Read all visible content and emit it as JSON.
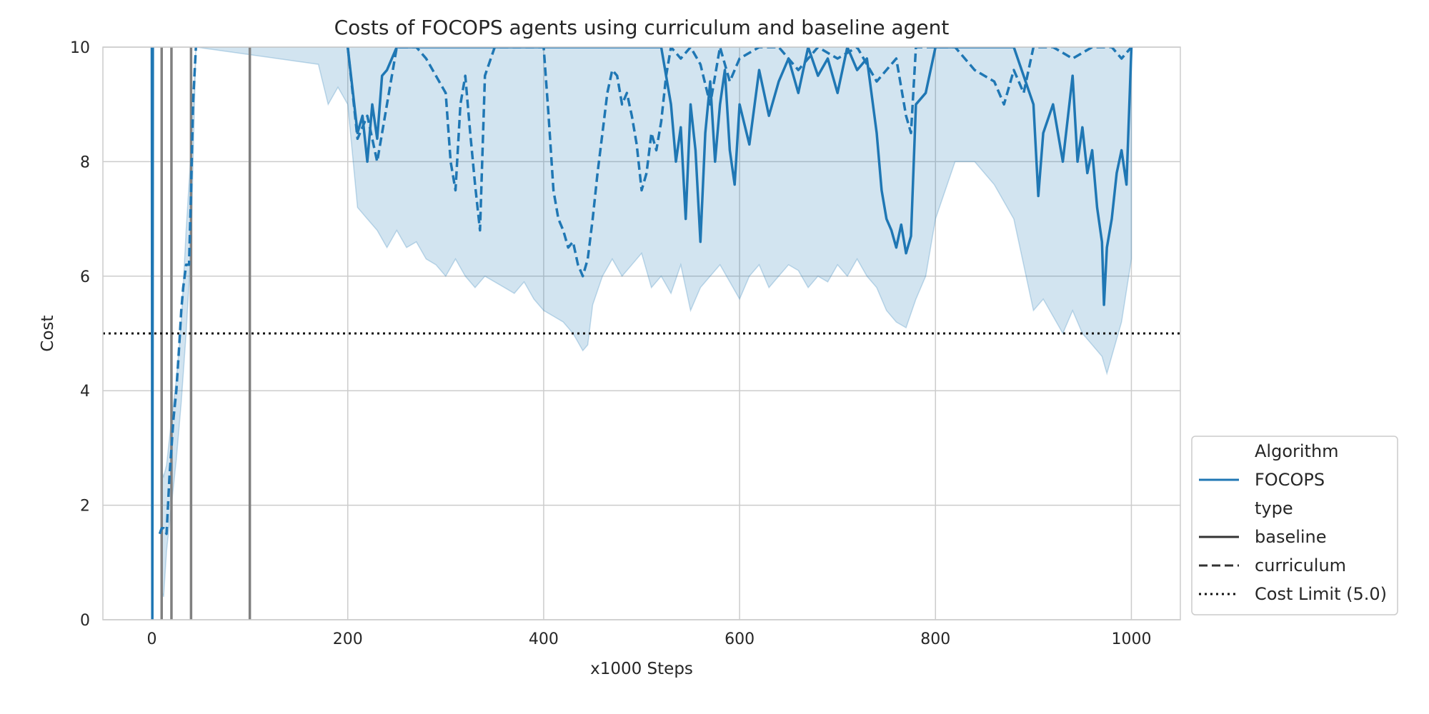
{
  "chart_data": {
    "type": "line",
    "title": "Costs of FOCOPS agents using curriculum and baseline agent",
    "xlabel": "x1000 Steps",
    "ylabel": "Cost",
    "xlim": [
      -50,
      1050
    ],
    "ylim": [
      0,
      10
    ],
    "xticks": [
      0,
      200,
      400,
      600,
      800,
      1000
    ],
    "yticks": [
      0,
      2,
      4,
      6,
      8,
      10
    ],
    "grid": true,
    "legend_position": "lower-right-outside",
    "cost_limit": 5.0,
    "phase_lines_x": [
      10,
      20,
      40,
      100
    ],
    "colors": {
      "series": "#1f77b4",
      "band": "#1f77b4",
      "phase_line": "#808080",
      "limit": "#111111",
      "grid": "#cccccc"
    },
    "legend": {
      "title_algorithm": "Algorithm",
      "algorithm": "FOCOPS",
      "title_type": "type",
      "baseline": "baseline",
      "curriculum": "curriculum",
      "cost_limit": "Cost Limit (5.0)"
    },
    "series": [
      {
        "name": "baseline",
        "style": "solid",
        "x": [
          0,
          0.5,
          1,
          200,
          210,
          215,
          220,
          225,
          230,
          235,
          240,
          250,
          260,
          280,
          300,
          320,
          340,
          360,
          380,
          400,
          420,
          440,
          460,
          480,
          500,
          510,
          520,
          530,
          535,
          540,
          545,
          550,
          555,
          560,
          565,
          570,
          575,
          580,
          585,
          590,
          595,
          600,
          610,
          620,
          630,
          640,
          650,
          660,
          670,
          680,
          690,
          700,
          710,
          720,
          730,
          740,
          745,
          750,
          755,
          760,
          765,
          770,
          775,
          780,
          790,
          800,
          810,
          820,
          840,
          860,
          880,
          900,
          905,
          910,
          920,
          930,
          940,
          945,
          950,
          955,
          960,
          965,
          970,
          972,
          975,
          980,
          985,
          990,
          995,
          1000
        ],
        "y": [
          10,
          0,
          10,
          10,
          8.5,
          8.8,
          8.0,
          9.0,
          8.4,
          9.5,
          9.6,
          10,
          10,
          10,
          10,
          10,
          10,
          10,
          10,
          10,
          10,
          10,
          10,
          10,
          10,
          10,
          10,
          9.0,
          8.0,
          8.6,
          7.0,
          9.0,
          8.2,
          6.6,
          8.5,
          9.4,
          8.0,
          9.0,
          9.6,
          8.2,
          7.6,
          9.0,
          8.3,
          9.6,
          8.8,
          9.4,
          9.8,
          9.2,
          10,
          9.5,
          9.8,
          9.2,
          10,
          9.6,
          9.8,
          8.5,
          7.5,
          7.0,
          6.8,
          6.5,
          6.9,
          6.4,
          6.7,
          9.0,
          9.2,
          10,
          10,
          10,
          10,
          10,
          10,
          9.0,
          7.4,
          8.5,
          9.0,
          8.0,
          9.5,
          8.0,
          8.6,
          7.8,
          8.2,
          7.2,
          6.6,
          5.5,
          6.5,
          7.0,
          7.8,
          8.2,
          7.6,
          10
        ]
      },
      {
        "name": "curriculum",
        "style": "dashed",
        "x": [
          8,
          10,
          12,
          15,
          18,
          20,
          22,
          25,
          28,
          30,
          32,
          35,
          38,
          40,
          42,
          45,
          200,
          210,
          220,
          230,
          240,
          250,
          260,
          270,
          280,
          290,
          300,
          305,
          310,
          315,
          320,
          325,
          330,
          335,
          340,
          350,
          360,
          370,
          380,
          390,
          400,
          405,
          410,
          415,
          420,
          425,
          430,
          435,
          440,
          445,
          450,
          455,
          460,
          465,
          470,
          475,
          480,
          485,
          490,
          495,
          500,
          505,
          510,
          515,
          520,
          525,
          530,
          540,
          550,
          560,
          570,
          580,
          590,
          600,
          620,
          640,
          660,
          680,
          700,
          720,
          740,
          760,
          770,
          775,
          780,
          790,
          800,
          820,
          840,
          860,
          870,
          880,
          890,
          900,
          920,
          940,
          960,
          970,
          980,
          990,
          1000
        ],
        "y": [
          1.5,
          1.6,
          1.6,
          1.5,
          2.5,
          3.0,
          3.5,
          4.0,
          4.8,
          5.4,
          5.8,
          6.2,
          6.2,
          7.5,
          9.0,
          10,
          10,
          8.4,
          8.8,
          8.0,
          9.0,
          10,
          10,
          10,
          9.8,
          9.5,
          9.2,
          8.0,
          7.5,
          9.0,
          9.5,
          8.5,
          7.6,
          6.8,
          9.5,
          10,
          10,
          10,
          10,
          10,
          10,
          8.8,
          7.5,
          7.0,
          6.8,
          6.5,
          6.6,
          6.2,
          6.0,
          6.3,
          7.0,
          7.8,
          8.5,
          9.2,
          9.6,
          9.5,
          9.0,
          9.2,
          8.8,
          8.3,
          7.5,
          7.8,
          8.5,
          8.2,
          8.7,
          9.5,
          10,
          9.8,
          10,
          9.7,
          9.0,
          10,
          9.4,
          9.8,
          10,
          10,
          9.6,
          10,
          9.8,
          10,
          9.4,
          9.8,
          8.8,
          8.5,
          10,
          10,
          10,
          10,
          9.6,
          9.4,
          9.0,
          9.6,
          9.2,
          10,
          10,
          9.8,
          10,
          10,
          10,
          9.8,
          10
        ]
      }
    ],
    "band": {
      "x": [
        10,
        12,
        15,
        20,
        25,
        30,
        35,
        40,
        45,
        170,
        180,
        190,
        200,
        210,
        220,
        230,
        240,
        250,
        260,
        270,
        280,
        290,
        300,
        310,
        320,
        330,
        340,
        350,
        360,
        370,
        380,
        390,
        400,
        410,
        420,
        430,
        440,
        445,
        450,
        460,
        470,
        480,
        490,
        500,
        510,
        520,
        530,
        540,
        550,
        560,
        570,
        580,
        590,
        600,
        610,
        620,
        630,
        640,
        650,
        660,
        670,
        680,
        690,
        700,
        710,
        720,
        730,
        740,
        750,
        760,
        770,
        780,
        790,
        800,
        820,
        840,
        860,
        880,
        900,
        910,
        920,
        930,
        940,
        950,
        960,
        970,
        975,
        980,
        990,
        1000
      ],
      "lower": [
        0.5,
        0.4,
        1.2,
        2.0,
        2.8,
        3.8,
        5.0,
        6.5,
        10,
        9.7,
        9.0,
        9.3,
        9.0,
        7.2,
        7.0,
        6.8,
        6.5,
        6.8,
        6.5,
        6.6,
        6.3,
        6.2,
        6.0,
        6.3,
        6.0,
        5.8,
        6.0,
        5.9,
        5.8,
        5.7,
        5.9,
        5.6,
        5.4,
        5.3,
        5.2,
        5.0,
        4.7,
        4.8,
        5.5,
        6.0,
        6.3,
        6.0,
        6.2,
        6.4,
        5.8,
        6.0,
        5.7,
        6.2,
        5.4,
        5.8,
        6.0,
        6.2,
        5.9,
        5.6,
        6.0,
        6.2,
        5.8,
        6.0,
        6.2,
        6.1,
        5.8,
        6.0,
        5.9,
        6.2,
        6.0,
        6.3,
        6.0,
        5.8,
        5.4,
        5.2,
        5.1,
        5.6,
        6.0,
        7.0,
        8.0,
        8.0,
        7.6,
        7.0,
        5.4,
        5.6,
        5.3,
        5.0,
        5.4,
        5.0,
        4.8,
        4.6,
        4.3,
        4.6,
        5.2,
        6.3
      ],
      "upper": [
        2.6,
        2.5,
        2.7,
        3.5,
        4.2,
        5.2,
        6.8,
        8.2,
        10,
        10,
        10,
        10,
        10,
        10,
        10,
        10,
        10,
        10,
        10,
        10,
        10,
        10,
        10,
        10,
        10,
        10,
        10,
        10,
        10,
        10,
        10,
        10,
        10,
        10,
        10,
        10,
        10,
        10,
        10,
        10,
        10,
        10,
        10,
        10,
        10,
        10,
        10,
        10,
        10,
        10,
        10,
        10,
        10,
        10,
        10,
        10,
        10,
        10,
        10,
        10,
        10,
        10,
        10,
        10,
        10,
        10,
        10,
        10,
        10,
        10,
        10,
        10,
        10,
        10,
        10,
        10,
        10,
        10,
        10,
        10,
        10,
        10,
        10,
        10,
        10,
        10,
        10,
        10,
        10,
        10
      ]
    }
  }
}
